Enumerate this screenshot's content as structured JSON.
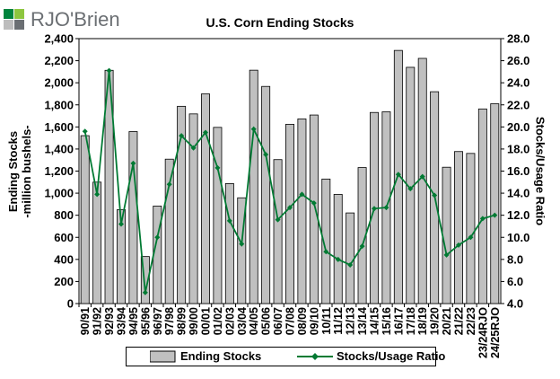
{
  "brand": {
    "name": "RJO'Brien",
    "colors": [
      "#00843d",
      "#8dc63f",
      "#bdbdbd",
      "#6b6f73"
    ]
  },
  "chart_data": {
    "type": "bar+line",
    "title": "U.S. Corn Ending Stocks",
    "ylabel_left": [
      "Ending Stocks",
      "-million bushels-"
    ],
    "ylabel_right": "Stocks/Usage Ratio",
    "ylim_left": [
      0,
      2400
    ],
    "yticks_left": [
      0,
      200,
      400,
      600,
      800,
      1000,
      1200,
      1400,
      1600,
      1800,
      2000,
      2200,
      2400
    ],
    "ytick_labels_left": [
      "0",
      "200",
      "400",
      "600",
      "800",
      "1,000",
      "1,200",
      "1,400",
      "1,600",
      "1,800",
      "2,000",
      "2,200",
      "2,400"
    ],
    "ylim_right": [
      4.0,
      28.0
    ],
    "yticks_right": [
      4.0,
      6.0,
      8.0,
      10.0,
      12.0,
      14.0,
      16.0,
      18.0,
      20.0,
      22.0,
      24.0,
      26.0,
      28.0
    ],
    "ytick_labels_right": [
      "4.0",
      "6.0",
      "8.0",
      "10.0",
      "12.0",
      "14.0",
      "16.0",
      "18.0",
      "20.0",
      "22.0",
      "24.0",
      "26.0",
      "28.0"
    ],
    "categories": [
      "90/91",
      "91/92",
      "92/93",
      "93/94",
      "94/95",
      "95/96",
      "96/97",
      "97/98",
      "98/99",
      "99/00",
      "00/01",
      "01/02",
      "02/03",
      "03/04",
      "04/05",
      "05/06",
      "06/07",
      "07/08",
      "08/09",
      "09/10",
      "10/11",
      "11/12",
      "12/13",
      "13/14",
      "14/15",
      "15/16",
      "16/17",
      "17/18",
      "18/19",
      "19/20",
      "20/21",
      "21/22",
      "22/23",
      "23/24RJO",
      "24/25RJO"
    ],
    "series": [
      {
        "name": "Ending Stocks",
        "type": "bar",
        "axis": "left",
        "color": "#c0c0c0",
        "values": [
          1521,
          1100,
          2113,
          850,
          1558,
          426,
          883,
          1308,
          1787,
          1718,
          1899,
          1596,
          1087,
          958,
          2114,
          1967,
          1304,
          1624,
          1673,
          1708,
          1128,
          989,
          821,
          1232,
          1731,
          1737,
          2293,
          2140,
          2221,
          1919,
          1235,
          1377,
          1360,
          1763,
          1810
        ]
      },
      {
        "name": "Stocks/Usage Ratio",
        "type": "line",
        "axis": "right",
        "color": "#007a33",
        "values": [
          19.6,
          13.9,
          25.1,
          11.2,
          16.7,
          5.0,
          10.0,
          14.8,
          19.2,
          18.1,
          19.5,
          16.3,
          11.5,
          9.4,
          19.8,
          17.5,
          11.6,
          12.7,
          13.9,
          13.1,
          8.7,
          8.0,
          7.5,
          9.2,
          12.6,
          12.7,
          15.7,
          14.4,
          15.5,
          13.8,
          8.4,
          9.3,
          10.0,
          11.7,
          12.0
        ]
      }
    ],
    "legend": {
      "position": "bottom",
      "entries": [
        "Ending Stocks",
        "Stocks/Usage Ratio"
      ]
    },
    "grid": false
  }
}
